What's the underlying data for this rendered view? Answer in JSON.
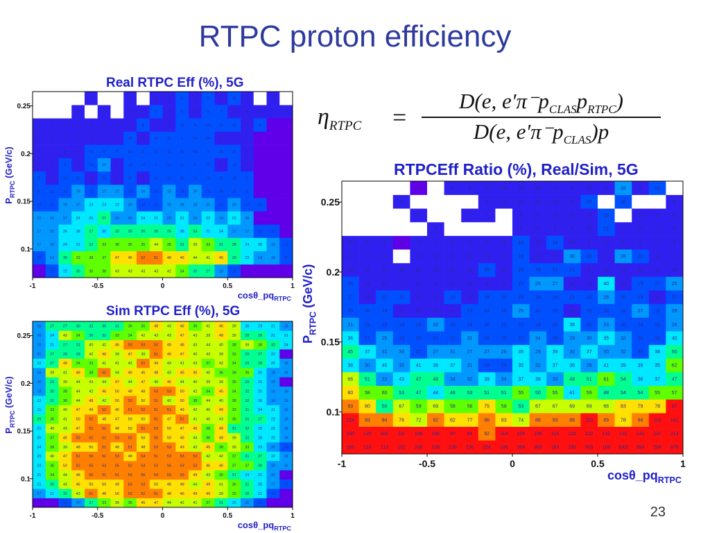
{
  "slide": {
    "title": "RTPC proton efficiency",
    "page_number": "23"
  },
  "formula": {
    "lhs": "η",
    "lhs_sub": "RTPC",
    "equals": "=",
    "numerator": "D(e, e′π⁻p",
    "numerator_sub1": "CLAS",
    "numerator_mid": "p",
    "numerator_sub2": "RTPC",
    "numerator_end": ")",
    "denominator": "D(e, e′π⁻p",
    "denominator_sub": "CLAS",
    "denominator_end": ")p"
  },
  "axis_text": {
    "ylabel_main": "P",
    "ylabel_sub": "RTPC",
    "ylabel_unit": " (GeV/c)",
    "xlabel_main": "cosθ_pq",
    "xlabel_sub": "RTPC"
  },
  "colors": {
    "palette": [
      "#6000e8",
      "#3020f0",
      "#0050ff",
      "#0098ff",
      "#00e8ff",
      "#00ff90",
      "#60ff00",
      "#c8ff00",
      "#ffe000",
      "#ff8000",
      "#ff1010"
    ],
    "title_blue": "#2020c8",
    "slide_title": "#2d3a9e",
    "empty_cell": "#ffffff"
  },
  "chart_data": [
    {
      "id": "real",
      "type": "heatmap",
      "title": "Real RTPC Eff (%), 5G",
      "xlim": [
        -1,
        1
      ],
      "ylim": [
        0.07,
        0.265
      ],
      "xticks": [
        "-1",
        "-0.5",
        "0",
        "0.5",
        "1"
      ],
      "yticks": [
        "0.1",
        "0.15",
        "0.2",
        "0.25"
      ],
      "ytick_values": [
        0.1,
        0.15,
        0.2,
        0.25
      ],
      "zmax": 60,
      "cols": 20,
      "rows": 14,
      "z": [
        [
          0,
          14,
          22,
          30,
          35,
          38,
          43,
          43,
          43,
          43,
          42,
          34,
          30,
          27,
          18,
          13,
          0,
          0,
          0,
          0
        ],
        [
          12,
          19,
          30,
          33,
          38,
          37,
          47,
          45,
          52,
          51,
          48,
          45,
          44,
          41,
          45,
          30,
          22,
          19,
          18,
          11
        ],
        [
          17,
          20,
          24,
          21,
          32,
          33,
          38,
          35,
          35,
          44,
          35,
          31,
          39,
          33,
          31,
          28,
          24,
          26,
          20,
          13
        ],
        [
          17,
          20,
          26,
          26,
          27,
          26,
          30,
          30,
          30,
          30,
          29,
          26,
          29,
          21,
          24,
          17,
          17,
          13,
          12,
          0
        ],
        [
          15,
          16,
          17,
          24,
          25,
          27,
          20,
          20,
          24,
          21,
          20,
          21,
          16,
          22,
          19,
          23,
          16,
          0,
          0,
          0
        ],
        [
          10,
          12,
          19,
          17,
          23,
          23,
          22,
          15,
          14,
          12,
          18,
          16,
          18,
          15,
          11,
          15,
          12,
          10,
          0,
          0
        ],
        [
          11,
          14,
          12,
          15,
          13,
          17,
          17,
          14,
          16,
          14,
          18,
          14,
          16,
          13,
          14,
          12,
          11,
          0,
          0,
          0
        ],
        [
          9,
          7,
          10,
          11,
          8,
          11,
          8,
          11,
          8,
          11,
          12,
          11,
          13,
          13,
          12,
          13,
          9,
          0,
          0,
          0
        ],
        [
          8,
          6,
          9,
          7,
          10,
          16,
          6,
          10,
          12,
          9,
          10,
          11,
          9,
          13,
          8,
          10,
          8,
          0,
          0,
          0
        ],
        [
          6,
          7,
          8,
          5,
          10,
          9,
          9,
          12,
          11,
          12,
          11,
          11,
          10,
          9,
          10,
          11,
          6,
          0,
          0,
          0
        ],
        [
          5,
          6,
          4,
          7,
          8,
          7,
          6,
          10,
          8,
          14,
          11,
          9,
          10,
          14,
          8,
          7,
          6,
          0,
          0,
          0
        ],
        [
          4,
          5,
          6,
          7,
          6,
          5,
          7,
          8,
          9,
          7,
          8,
          10,
          9,
          10,
          11,
          10,
          8,
          9,
          0,
          0
        ],
        [
          -1,
          -1,
          -1,
          5,
          -1,
          6,
          -1,
          8,
          7,
          9,
          8,
          9,
          8,
          11,
          9,
          8,
          6,
          8,
          7,
          5
        ],
        [
          -1,
          -1,
          -1,
          -1,
          7,
          -1,
          -1,
          6,
          -1,
          8,
          7,
          9,
          8,
          9,
          8,
          10,
          7,
          -1,
          6,
          -1
        ]
      ]
    },
    {
      "id": "sim",
      "type": "heatmap",
      "title": "Sim RTPC Eff (%), 5G",
      "xlim": [
        -1,
        1
      ],
      "ylim": [
        0.07,
        0.265
      ],
      "xticks": [
        "-1",
        "-0.5",
        "0",
        "0.5",
        "1"
      ],
      "yticks": [
        "0.1",
        "0.15",
        "0.2",
        "0.25"
      ],
      "ytick_values": [
        0.1,
        0.15,
        0.2,
        0.25
      ],
      "zmax": 60,
      "cols": 20,
      "rows": 20,
      "z": [
        [
          0,
          0,
          14,
          20,
          27,
          33,
          39,
          35,
          45,
          47,
          44,
          42,
          41,
          37,
          31,
          25,
          20,
          14,
          0,
          0
        ],
        [
          17,
          21,
          32,
          43,
          51,
          48,
          50,
          53,
          52,
          51,
          48,
          46,
          49,
          49,
          39,
          33,
          28,
          21,
          14,
          0
        ],
        [
          21,
          30,
          43,
          46,
          50,
          50,
          49,
          53,
          53,
          50,
          48,
          48,
          44,
          49,
          41,
          36,
          31,
          26,
          17,
          13
        ],
        [
          21,
          34,
          44,
          48,
          56,
          51,
          51,
          53,
          56,
          54,
          53,
          53,
          49,
          43,
          36,
          31,
          24,
          21,
          16,
          0
        ],
        [
          23,
          35,
          50,
          52,
          55,
          53,
          55,
          52,
          53,
          52,
          56,
          53,
          52,
          46,
          46,
          37,
          37,
          30,
          20,
          15
        ],
        [
          25,
          40,
          47,
          51,
          56,
          51,
          53,
          48,
          54,
          51,
          53,
          53,
          53,
          42,
          42,
          37,
          31,
          27,
          22,
          16
        ],
        [
          24,
          38,
          39,
          48,
          50,
          51,
          48,
          51,
          48,
          52,
          53,
          49,
          42,
          45,
          38,
          39,
          33,
          23,
          20,
          13
        ],
        [
          25,
          37,
          45,
          52,
          52,
          51,
          53,
          52,
          50,
          55,
          50,
          45,
          44,
          38,
          49,
          39,
          32,
          26,
          22,
          19
        ],
        [
          21,
          40,
          43,
          47,
          51,
          51,
          48,
          50,
          51,
          53,
          50,
          47,
          45,
          38,
          49,
          31,
          32,
          25,
          22,
          16
        ],
        [
          29,
          36,
          41,
          50,
          52,
          48,
          47,
          50,
          50,
          51,
          47,
          51,
          41,
          40,
          43,
          36,
          31,
          27,
          22,
          19
        ],
        [
          21,
          33,
          40,
          47,
          49,
          52,
          46,
          51,
          52,
          51,
          51,
          49,
          42,
          40,
          49,
          33,
          31,
          24,
          21,
          15
        ],
        [
          22,
          31,
          38,
          44,
          48,
          42,
          50,
          53,
          50,
          51,
          42,
          50,
          38,
          44,
          40,
          38,
          32,
          26,
          19,
          19
        ],
        [
          18,
          30,
          38,
          44,
          42,
          46,
          50,
          48,
          48,
          53,
          53,
          50,
          42,
          34,
          45,
          34,
          32,
          26,
          16,
          16
        ],
        [
          16,
          29,
          39,
          44,
          43,
          44,
          47,
          44,
          47,
          40,
          46,
          44,
          40,
          39,
          39,
          35,
          29,
          25,
          20,
          0
        ],
        [
          15,
          39,
          41,
          48,
          38,
          52,
          44,
          46,
          45,
          48,
          43,
          45,
          45,
          40,
          36,
          38,
          36,
          26,
          18,
          15
        ],
        [
          22,
          27,
          49,
          34,
          33,
          41,
          41,
          42,
          51,
          49,
          43,
          41,
          43,
          37,
          42,
          34,
          29,
          28,
          25,
          19
        ],
        [
          20,
          27,
          28,
          29,
          42,
          46,
          39,
          47,
          39,
          51,
          49,
          47,
          40,
          43,
          39,
          33,
          29,
          27,
          22,
          0
        ],
        [
          16,
          21,
          27,
          31,
          40,
          42,
          46,
          53,
          53,
          52,
          49,
          48,
          43,
          44,
          40,
          38,
          39,
          38,
          32,
          24
        ],
        [
          16,
          24,
          43,
          34,
          30,
          32,
          33,
          34,
          42,
          42,
          43,
          47,
          43,
          39,
          48,
          39,
          28,
          28,
          21,
          21
        ],
        [
          16,
          27,
          27,
          30,
          32,
          30,
          31,
          36,
          35,
          48,
          43,
          46,
          36,
          41,
          46,
          39,
          26,
          23,
          21,
          15
        ]
      ]
    },
    {
      "id": "ratio",
      "type": "heatmap",
      "title": "RTPCEff Ratio (%), Real/Sim, 5G",
      "xlim": [
        -1,
        1
      ],
      "ylim": [
        0.07,
        0.265
      ],
      "xticks": [
        "-1",
        "-0.5",
        "0",
        "0.5",
        "1"
      ],
      "yticks": [
        "0.1",
        "0.15",
        "0.2",
        "0.25"
      ],
      "ytick_values": [
        0.1,
        0.15,
        0.2,
        0.25
      ],
      "zmax": 100,
      "cols": 20,
      "rows": 16,
      "z": [
        [
          165,
          124,
          113,
          102,
          245,
          108,
          239,
          230,
          254,
          148,
          399,
          300,
          163,
          190,
          603,
          168,
          1002,
          394,
          294,
          678
        ],
        [
          150,
          120,
          101,
          111,
          108,
          106,
          97,
          95,
          92,
          114,
          105,
          106,
          114,
          110,
          122,
          132,
          131,
          141,
          137,
          213
        ],
        [
          124,
          93,
          94,
          76,
          72,
          92,
          82,
          77,
          86,
          83,
          74,
          88,
          93,
          88,
          110,
          89,
          78,
          94,
          113,
          141
        ],
        [
          93,
          80,
          50,
          67,
          59,
          69,
          58,
          56,
          75,
          58,
          53,
          67,
          67,
          69,
          69,
          66,
          83,
          79,
          78,
          97
        ],
        [
          80,
          58,
          60,
          53,
          47,
          44,
          48,
          53,
          51,
          51,
          55,
          50,
          55,
          41,
          59,
          48,
          54,
          54,
          55,
          57
        ],
        [
          66,
          51,
          33,
          43,
          47,
          48,
          34,
          32,
          39,
          34,
          37,
          39,
          33,
          48,
          51,
          61,
          54,
          36,
          37,
          47
        ],
        [
          38,
          30,
          40,
          33,
          41,
          36,
          37,
          31,
          24,
          23,
          35,
          32,
          37,
          36,
          26,
          41,
          39,
          38,
          35,
          62
        ],
        [
          45,
          37,
          31,
          33,
          22,
          27,
          31,
          27,
          27,
          26,
          35,
          29,
          39,
          30,
          37,
          30,
          32,
          23,
          38,
          50
        ],
        [
          36,
          21,
          25,
          19,
          20,
          21,
          22,
          31,
          19,
          22,
          22,
          34,
          23,
          29,
          30,
          35,
          32,
          20,
          24,
          40
        ],
        [
          31,
          23,
          15,
          19,
          18,
          32,
          15,
          19,
          18,
          22,
          21,
          18,
          20,
          36,
          15,
          33,
          16,
          19,
          20,
          26
        ],
        [
          15,
          16,
          19,
          12,
          13,
          12,
          13,
          24,
          23,
          15,
          25,
          21,
          19,
          14,
          19,
          22,
          18,
          27,
          19,
          28
        ],
        [
          17,
          14,
          22,
          15,
          13,
          12,
          15,
          11,
          18,
          20,
          18,
          18,
          24,
          21,
          24,
          26,
          20,
          15,
          10,
          17
        ],
        [
          16,
          10,
          13,
          7,
          13,
          8,
          12,
          10,
          8,
          9,
          15,
          25,
          27,
          14,
          12,
          40,
          14,
          19,
          17,
          25
        ],
        [
          13,
          11,
          13,
          10,
          12,
          14,
          12,
          11,
          16,
          12,
          16,
          18,
          21,
          21,
          8,
          10,
          14,
          12,
          11,
          14
        ],
        [
          13,
          7,
          9,
          -1,
          12,
          10,
          8,
          12,
          10,
          9,
          16,
          10,
          9,
          30,
          23,
          7,
          28,
          22,
          14,
          5
        ],
        [
          10,
          8,
          6,
          4,
          9,
          7,
          8,
          9,
          5,
          11,
          18,
          10,
          19,
          10,
          6,
          9,
          9,
          8,
          7,
          9
        ]
      ],
      "top_rows": [
        [
          -1,
          -1,
          -1,
          -1,
          -1,
          5,
          -1,
          -1,
          -1,
          -1,
          6,
          9,
          8,
          6,
          12,
          21,
          7,
          10,
          7,
          6
        ],
        [
          -1,
          -1,
          -1,
          -1,
          6,
          -1,
          -1,
          7,
          5,
          -1,
          9,
          8,
          10,
          14,
          13,
          15,
          -1,
          12,
          8,
          8
        ],
        [
          -1,
          -1,
          -1,
          6,
          -1,
          -1,
          -1,
          -1,
          9,
          11,
          10,
          12,
          14,
          11,
          15,
          -1,
          16,
          -1,
          -1,
          8
        ],
        [
          -1,
          -1,
          -1,
          -1,
          3,
          -1,
          8,
          9,
          12,
          14,
          13,
          10,
          11,
          9,
          12,
          8,
          28,
          9,
          21,
          -1
        ]
      ]
    }
  ]
}
